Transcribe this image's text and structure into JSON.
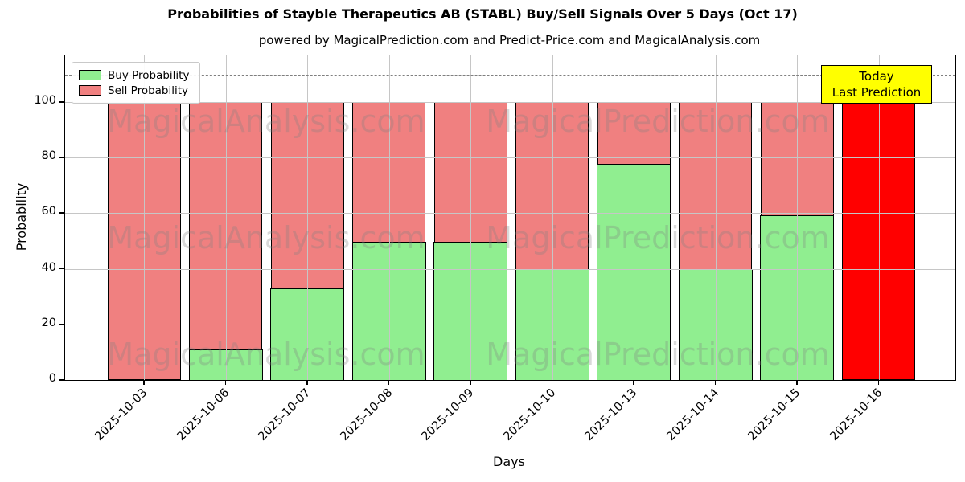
{
  "chart_data": {
    "type": "bar",
    "stacked": true,
    "title": "Probabilities of Stayble Therapeutics AB (STABL) Buy/Sell Signals Over 5 Days (Oct 17)",
    "subtitle": "powered by MagicalPrediction.com and Predict-Price.com and MagicalAnalysis.com",
    "xlabel": "Days",
    "ylabel": "Probability",
    "categories": [
      "2025-10-03",
      "2025-10-06",
      "2025-10-07",
      "2025-10-08",
      "2025-10-09",
      "2025-10-10",
      "2025-10-13",
      "2025-10-14",
      "2025-10-15",
      "2025-10-16"
    ],
    "series": [
      {
        "name": "Buy Probability",
        "color": "#90ee90",
        "values": [
          0,
          11,
          33,
          50,
          50,
          40,
          78,
          40,
          59.5,
          0
        ]
      },
      {
        "name": "Sell Probability",
        "color": "#f08080",
        "values": [
          100,
          89,
          67,
          50,
          50,
          60,
          22,
          60,
          40.5,
          100
        ]
      }
    ],
    "highlight": {
      "index": 9,
      "sell_color": "#ff0000",
      "note": "Today / Last Prediction bar drawn in solid red"
    },
    "ylim": [
      0,
      116.8
    ],
    "yticks": [
      0,
      20,
      40,
      60,
      80,
      100
    ],
    "grid": true,
    "grid_color": "#c6c6c6",
    "dashed_line_y": 110,
    "dashed_line_color": "#7f7f7f",
    "legend_position": "upper left",
    "annotation": {
      "line1": "Today",
      "line2": "Last Prediction",
      "bg_color": "#ffff00"
    },
    "watermarks": [
      "MagicalAnalysis.com",
      "MagicalPrediction.com"
    ],
    "bar_edge_color": "#000000"
  }
}
